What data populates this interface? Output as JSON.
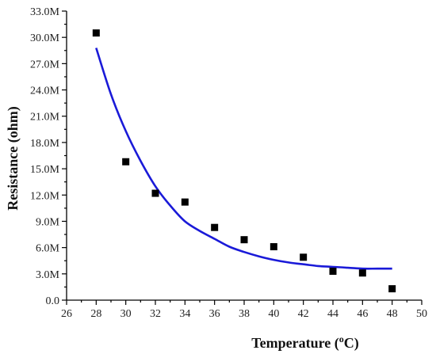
{
  "chart_data": {
    "type": "scatter",
    "xlabel_prefix": "Temperature (",
    "xlabel_sup": "o",
    "xlabel_suffix": "C)",
    "ylabel": "Resistance (ohm)",
    "xlim": [
      26,
      50
    ],
    "ylim": [
      0,
      33000000
    ],
    "x_ticks": [
      "26",
      "28",
      "30",
      "32",
      "34",
      "36",
      "38",
      "40",
      "42",
      "44",
      "46",
      "48",
      "50"
    ],
    "y_ticks": [
      "0.0",
      "3.0M",
      "6.0M",
      "9.0M",
      "12.0M",
      "15.0M",
      "18.0M",
      "21.0M",
      "24.0M",
      "27.0M",
      "30.0M",
      "33.0M"
    ],
    "grid": false,
    "series": [
      {
        "type": "scatter",
        "marker": "square",
        "color": "#000000",
        "x": [
          28,
          30,
          32,
          34,
          36,
          38,
          40,
          42,
          44,
          46,
          48
        ],
        "y": [
          30500000,
          15800000,
          12200000,
          11200000,
          8300000,
          6900000,
          6100000,
          4900000,
          3300000,
          3100000,
          1300000
        ]
      },
      {
        "type": "line",
        "color": "#1a1ad8",
        "x": [
          28,
          29,
          30,
          31,
          32,
          33,
          34,
          35,
          36,
          37,
          38,
          39,
          40,
          41,
          42,
          43,
          44,
          45,
          46,
          47,
          48
        ],
        "y": [
          28800000,
          23500000,
          19300000,
          15900000,
          13000000,
          10800000,
          9000000,
          7900000,
          7000000,
          6100000,
          5500000,
          5000000,
          4600000,
          4300000,
          4100000,
          3900000,
          3800000,
          3700000,
          3600000,
          3600000,
          3600000
        ]
      }
    ]
  }
}
